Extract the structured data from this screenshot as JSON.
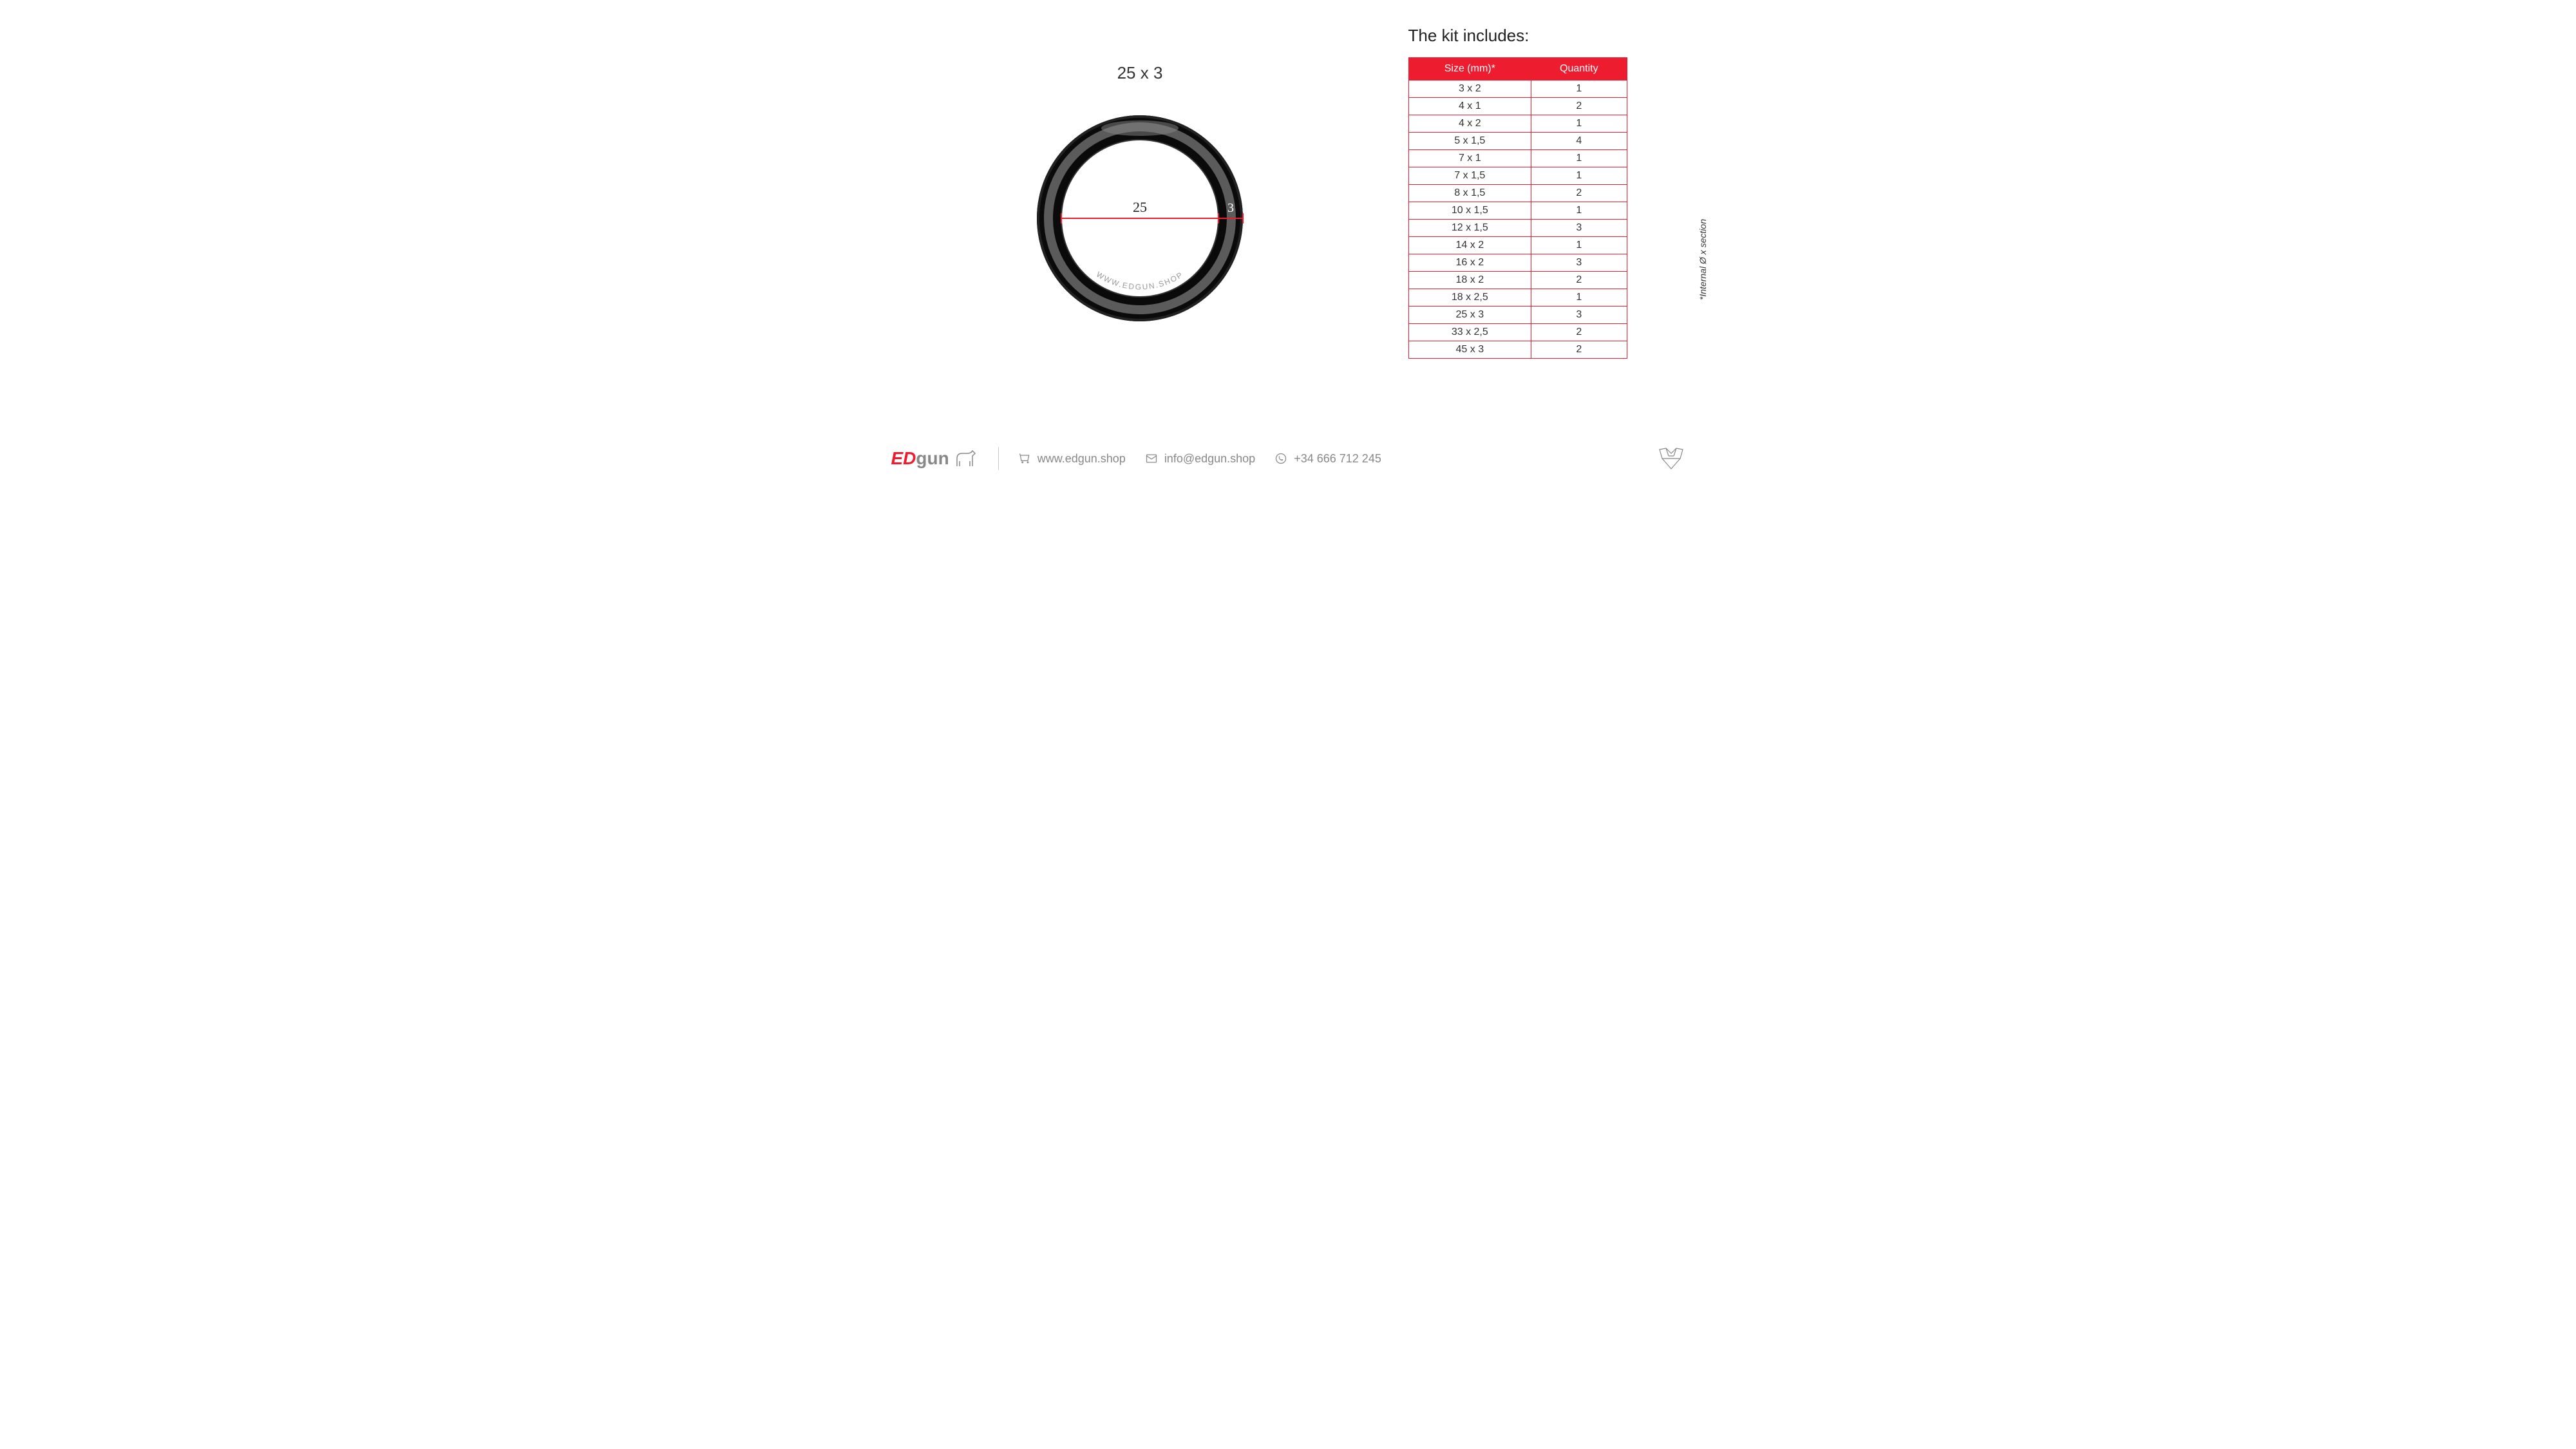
{
  "ring": {
    "label": "25 x 3",
    "inner_label": "25",
    "section_label": "3",
    "watermark": "WWW.EDGUN.SHOP",
    "outer_radius": 170,
    "ring_thickness": 40,
    "ring_color_outer": "#0a0a0a",
    "ring_color_mid": "#4a4a4a",
    "dimension_color": "#ed1c2e"
  },
  "table": {
    "title": "The kit includes:",
    "header_bg": "#ed1c2e",
    "header_fg": "#ffffff",
    "border_color": "#ed1c2e",
    "columns": [
      "Size (mm)*",
      "Quantity"
    ],
    "rows": [
      [
        "3 x 2",
        "1"
      ],
      [
        "4 x 1",
        "2"
      ],
      [
        "4 x 2",
        "1"
      ],
      [
        "5 x 1,5",
        "4"
      ],
      [
        "7 x 1",
        "1"
      ],
      [
        "7 x 1,5",
        "1"
      ],
      [
        "8 x 1,5",
        "2"
      ],
      [
        "10 x 1,5",
        "1"
      ],
      [
        "12 x 1,5",
        "3"
      ],
      [
        "14 x 2",
        "1"
      ],
      [
        "16 x 2",
        "3"
      ],
      [
        "18 x 2",
        "2"
      ],
      [
        "18 x 2,5",
        "1"
      ],
      [
        "25 x 3",
        "3"
      ],
      [
        "33 x 2,5",
        "2"
      ],
      [
        "45 x 3",
        "2"
      ]
    ],
    "footnote": "*Internal Ø x section"
  },
  "footer": {
    "logo_ed": "ED",
    "logo_gun": "gun",
    "website": "www.edgun.shop",
    "email": "info@edgun.shop",
    "phone": "+34 666 712 245"
  },
  "colors": {
    "accent": "#ed1c2e",
    "text": "#333333",
    "muted": "#888888",
    "bg": "#ffffff"
  }
}
